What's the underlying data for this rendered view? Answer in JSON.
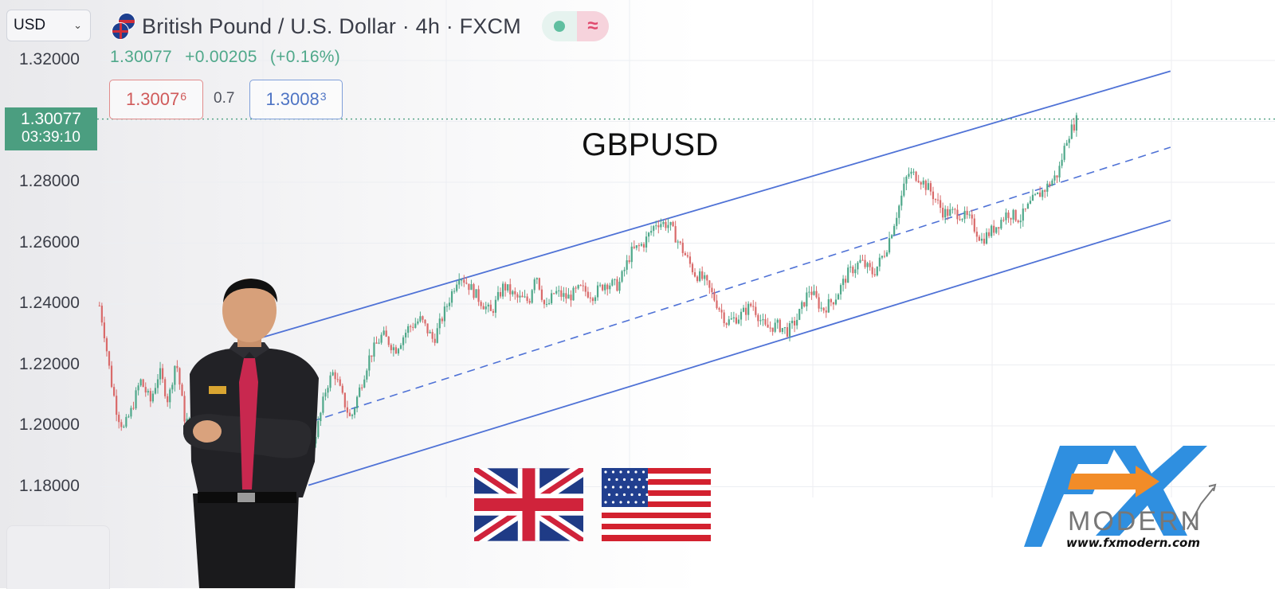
{
  "toolbar": {
    "currency": "USD",
    "symbol_title": "British Pound / U.S. Dollar · 4h · FXCM",
    "last_price": "1.30077",
    "change_abs": "+0.00205",
    "change_pct": "(+0.16%)"
  },
  "quotes": {
    "bid_main": "1.3007",
    "bid_pip": "6",
    "spread": "0.7",
    "ask_main": "1.3008",
    "ask_pip": "3"
  },
  "price_tag": {
    "price": "1.30077",
    "countdown": "03:39:10"
  },
  "overlay": {
    "pair_label": "GBPUSD",
    "logo_text": "MODERN",
    "logo_url": "www.fxmodern.com"
  },
  "colors": {
    "up": "#4fa88a",
    "down": "#d96a6a",
    "channel": "#4f72d6",
    "price_line": "#4b9e80",
    "logo_blue": "#2f8fe0",
    "logo_orange": "#f28c28"
  },
  "chart_data": {
    "type": "candlestick",
    "title": "GBPUSD",
    "yaxis": {
      "ticks": [
        "1.32000",
        "1.28000",
        "1.26000",
        "1.24000",
        "1.22000",
        "1.20000",
        "1.18000"
      ],
      "ylim": [
        1.176,
        1.335
      ]
    },
    "last_price": 1.30077,
    "grid": true,
    "channel": {
      "upper": {
        "x0": 0.185,
        "y0": 1.2265,
        "x1": 0.918,
        "y1": 1.3165
      },
      "middle": {
        "x0": 0.245,
        "y0": 1.2015,
        "x1": 0.918,
        "y1": 1.2915,
        "style": "dashed"
      },
      "lower": {
        "x0": 0.242,
        "y0": 1.1805,
        "x1": 0.918,
        "y1": 1.2675
      }
    },
    "path_x": [
      0.078,
      0.082,
      0.087,
      0.092,
      0.097,
      0.103,
      0.11,
      0.118,
      0.125,
      0.132,
      0.138,
      0.145,
      0.15,
      0.16,
      0.175,
      0.19,
      0.205,
      0.215,
      0.225,
      0.232,
      0.24,
      0.25,
      0.256,
      0.262,
      0.268,
      0.275,
      0.282,
      0.29,
      0.3,
      0.31,
      0.32,
      0.33,
      0.34,
      0.35,
      0.36,
      0.368,
      0.375,
      0.385,
      0.395,
      0.405,
      0.415,
      0.42,
      0.428,
      0.435,
      0.445,
      0.455,
      0.465,
      0.475,
      0.485,
      0.495,
      0.505,
      0.515,
      0.525,
      0.535,
      0.545,
      0.552,
      0.56,
      0.57,
      0.58,
      0.59,
      0.6,
      0.61,
      0.618,
      0.625,
      0.635,
      0.645,
      0.655,
      0.665,
      0.675,
      0.685,
      0.695,
      0.705,
      0.712,
      0.72,
      0.73,
      0.74,
      0.75,
      0.76,
      0.77,
      0.78,
      0.79,
      0.8,
      0.81,
      0.82,
      0.83,
      0.837,
      0.845
    ],
    "path_y": [
      1.2395,
      1.23,
      1.215,
      1.204,
      1.199,
      1.205,
      1.215,
      1.208,
      1.218,
      1.208,
      1.222,
      1.202,
      1.201,
      1.199,
      1.205,
      1.201,
      1.199,
      1.186,
      1.183,
      1.182,
      1.187,
      1.201,
      1.213,
      1.218,
      1.21,
      1.202,
      1.212,
      1.223,
      1.23,
      1.225,
      1.232,
      1.235,
      1.228,
      1.239,
      1.25,
      1.246,
      1.242,
      1.237,
      1.246,
      1.242,
      1.241,
      1.251,
      1.238,
      1.244,
      1.242,
      1.245,
      1.243,
      1.247,
      1.246,
      1.257,
      1.26,
      1.267,
      1.266,
      1.258,
      1.25,
      1.248,
      1.242,
      1.234,
      1.236,
      1.24,
      1.232,
      1.233,
      1.231,
      1.235,
      1.245,
      1.238,
      1.242,
      1.25,
      1.254,
      1.25,
      1.258,
      1.272,
      1.283,
      1.282,
      1.277,
      1.27,
      1.27,
      1.268,
      1.261,
      1.265,
      1.27,
      1.268,
      1.274,
      1.278,
      1.283,
      1.295,
      1.3008
    ]
  }
}
